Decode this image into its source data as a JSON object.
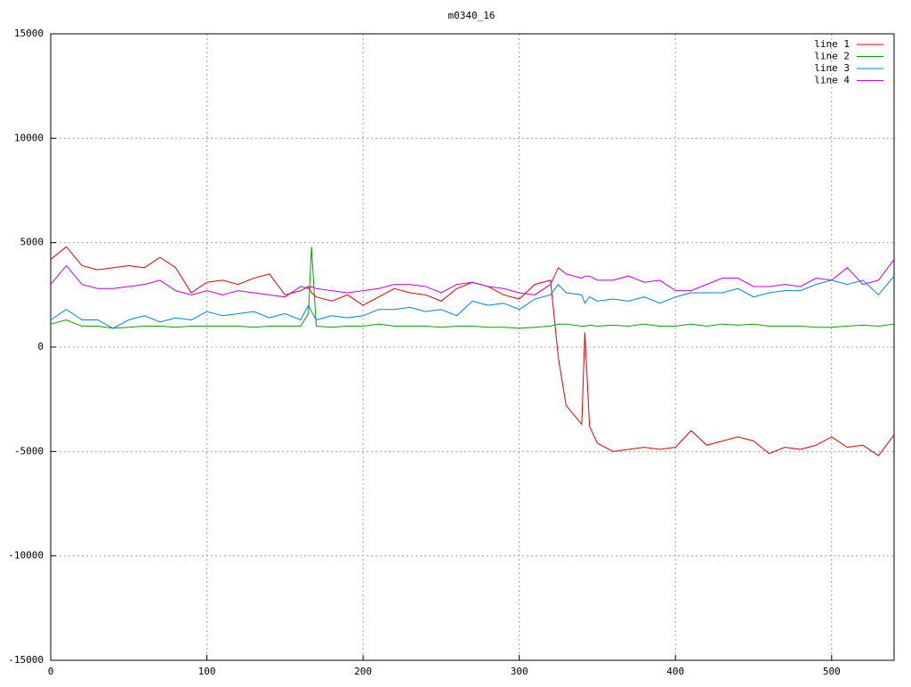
{
  "chart_data": {
    "type": "line",
    "title": "m0340_16",
    "x": [
      0,
      10,
      20,
      30,
      40,
      50,
      60,
      70,
      80,
      90,
      100,
      110,
      120,
      130,
      140,
      150,
      160,
      165,
      167,
      170,
      180,
      190,
      200,
      210,
      220,
      230,
      240,
      250,
      260,
      270,
      280,
      290,
      300,
      310,
      320,
      325,
      330,
      340,
      342,
      345,
      350,
      360,
      370,
      380,
      390,
      400,
      410,
      420,
      430,
      440,
      450,
      460,
      470,
      480,
      490,
      500,
      510,
      520,
      530,
      540
    ],
    "series": [
      {
        "name": "line 1",
        "color": "#e00000",
        "values": [
          4200,
          4800,
          3900,
          3700,
          3800,
          3900,
          3800,
          4300,
          3800,
          2600,
          3100,
          3200,
          3000,
          3300,
          3500,
          2500,
          2700,
          2900,
          2600,
          2400,
          2200,
          2500,
          2000,
          2400,
          2800,
          2600,
          2500,
          2200,
          2800,
          3100,
          2900,
          2500,
          2300,
          3000,
          3200,
          -500,
          -2800,
          -3700,
          700,
          -3800,
          -4600,
          -5000,
          -4900,
          -4800,
          -4900,
          -4800,
          -4000,
          -4700,
          -4500,
          -4300,
          -4500,
          -5100,
          -4800,
          -4900,
          -4700,
          -4300,
          -4800,
          -4700,
          -5200,
          -4200
        ]
      },
      {
        "name": "line 2",
        "color": "#00a000",
        "values": [
          1100,
          1300,
          1000,
          1000,
          900,
          950,
          1000,
          1000,
          950,
          1000,
          1000,
          1000,
          1000,
          950,
          1000,
          1000,
          1000,
          1600,
          4800,
          1000,
          950,
          1000,
          1000,
          1100,
          1000,
          1000,
          1000,
          950,
          1000,
          1000,
          950,
          950,
          900,
          950,
          1000,
          1100,
          1100,
          1000,
          1000,
          1050,
          1000,
          1050,
          1000,
          1100,
          1000,
          1000,
          1100,
          1000,
          1100,
          1050,
          1100,
          1000,
          1000,
          1000,
          950,
          950,
          1000,
          1050,
          1000,
          1100
        ]
      },
      {
        "name": "line 3",
        "color": "#0080e0",
        "values": [
          1300,
          1800,
          1300,
          1300,
          900,
          1300,
          1500,
          1200,
          1400,
          1300,
          1700,
          1500,
          1600,
          1700,
          1400,
          1600,
          1300,
          2000,
          1700,
          1300,
          1500,
          1400,
          1500,
          1800,
          1800,
          1900,
          1700,
          1800,
          1500,
          2200,
          2000,
          2100,
          1800,
          2300,
          2500,
          3000,
          2600,
          2500,
          2100,
          2400,
          2200,
          2300,
          2200,
          2400,
          2100,
          2400,
          2600,
          2600,
          2600,
          2800,
          2400,
          2600,
          2700,
          2700,
          3000,
          3200,
          3000,
          3200,
          2500,
          3400
        ]
      },
      {
        "name": "line 4",
        "color": "#c000e0",
        "values": [
          3000,
          3900,
          3000,
          2800,
          2800,
          2900,
          3000,
          3200,
          2700,
          2500,
          2700,
          2500,
          2700,
          2600,
          2500,
          2400,
          2900,
          2800,
          2900,
          2800,
          2700,
          2600,
          2700,
          2800,
          3000,
          3000,
          2900,
          2600,
          3000,
          3100,
          2900,
          2800,
          2600,
          2500,
          3000,
          3800,
          3500,
          3300,
          3400,
          3400,
          3200,
          3200,
          3400,
          3100,
          3200,
          2700,
          2700,
          3000,
          3300,
          3300,
          2900,
          2900,
          3000,
          2900,
          3300,
          3200,
          3800,
          3000,
          3200,
          4200
        ]
      }
    ],
    "xlim": [
      0,
      540
    ],
    "xticks": [
      0,
      100,
      200,
      300,
      400,
      500
    ],
    "ylim": [
      -15000,
      15000
    ],
    "yticks": [
      -15000,
      -10000,
      -5000,
      0,
      5000,
      10000,
      15000
    ],
    "grid": true,
    "legend": "top-right"
  }
}
